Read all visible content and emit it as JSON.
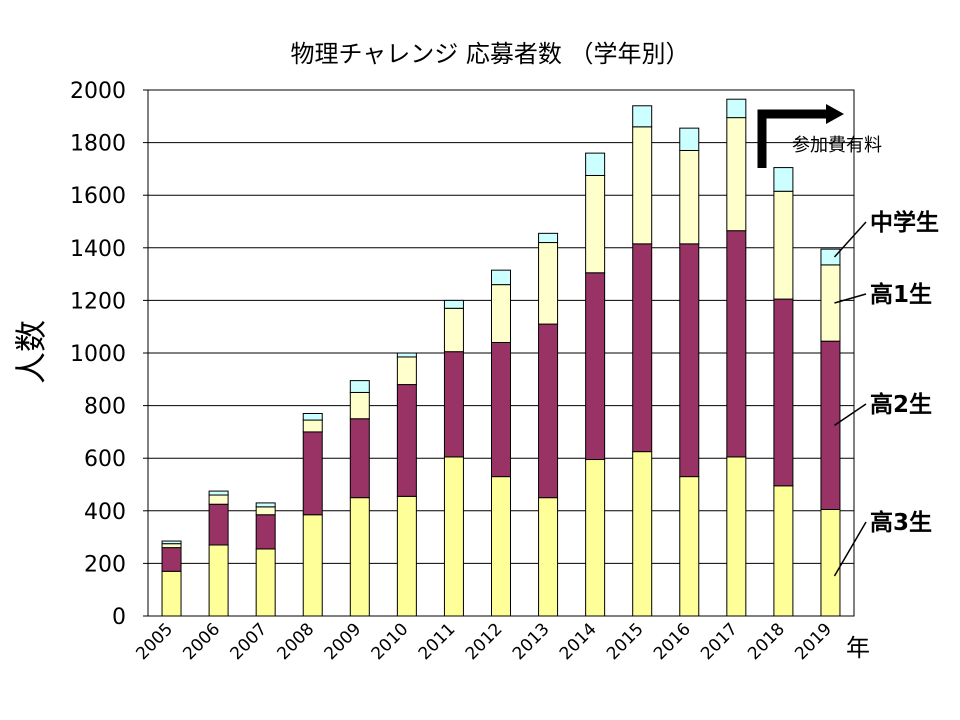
{
  "chart_data": {
    "type": "bar",
    "stacked": true,
    "title": "物理チャレンジ 応募者数 （学年別）",
    "ylabel": "人数",
    "xunit": "年",
    "ylim": [
      0,
      2000
    ],
    "yticks": [
      "0",
      "200",
      "400",
      "600",
      "800",
      "1000",
      "1200",
      "1400",
      "1600",
      "1800",
      "2000"
    ],
    "grid": true,
    "categories": [
      "2005",
      "2006",
      "2007",
      "2008",
      "2009",
      "2010",
      "2011",
      "2012",
      "2013",
      "2014",
      "2015",
      "2016",
      "2017",
      "2018",
      "2019"
    ],
    "series": [
      {
        "name": "高3生",
        "color": "#ffff99",
        "values": [
          170,
          270,
          255,
          385,
          450,
          455,
          605,
          530,
          450,
          595,
          625,
          530,
          605,
          495,
          405
        ]
      },
      {
        "name": "高2生",
        "color": "#993366",
        "values": [
          90,
          155,
          130,
          315,
          300,
          425,
          400,
          510,
          660,
          710,
          790,
          885,
          860,
          710,
          640
        ]
      },
      {
        "name": "高1生",
        "color": "#ffffcc",
        "values": [
          15,
          35,
          30,
          45,
          100,
          105,
          165,
          220,
          310,
          370,
          445,
          355,
          430,
          410,
          290
        ]
      },
      {
        "name": "中学生",
        "color": "#ccffff",
        "values": [
          10,
          15,
          15,
          25,
          45,
          15,
          30,
          55,
          35,
          85,
          80,
          85,
          70,
          90,
          60
        ]
      }
    ],
    "annotations": {
      "fee": "参加費有料"
    }
  }
}
